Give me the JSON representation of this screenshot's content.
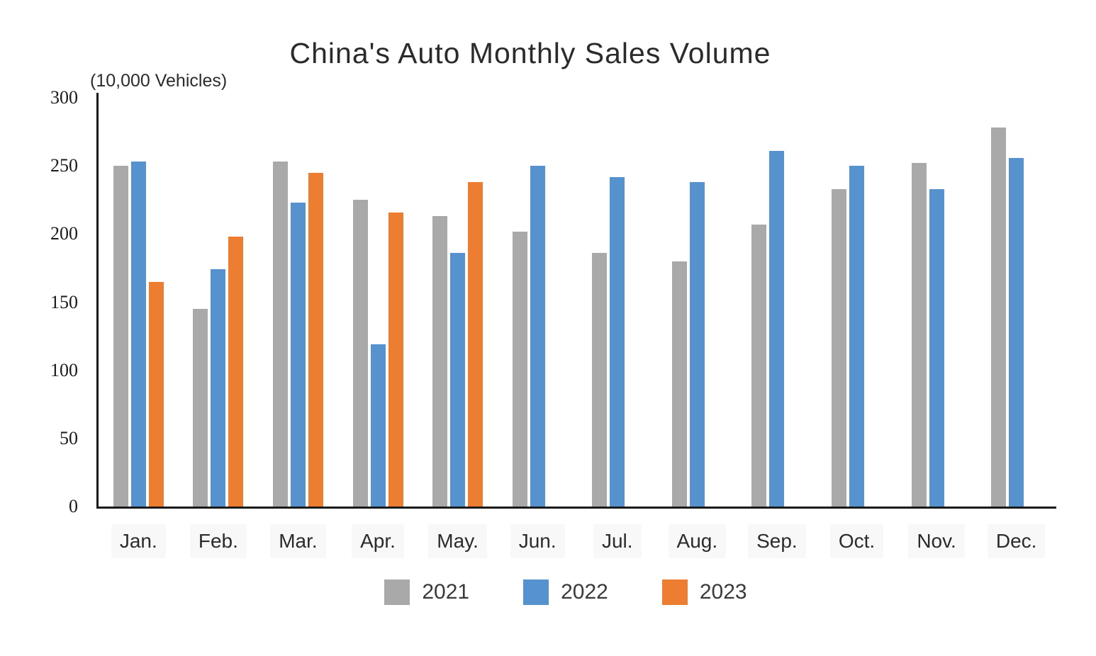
{
  "title": "China's Auto Monthly Sales Volume",
  "unit_label": "(10,000 Vehicles)",
  "colors": {
    "background": "#ffffff",
    "axis": "#1a1a1a",
    "text": "#2d2a2a",
    "series_2021": "#a9a9a9",
    "series_2022": "#5592ce",
    "series_2023": "#ed7d31"
  },
  "chart_data": {
    "type": "bar",
    "title": "China's Auto Monthly Sales Volume",
    "ylabel": "(10,000 Vehicles)",
    "xlabel": "",
    "categories": [
      "Jan.",
      "Feb.",
      "Mar.",
      "Apr.",
      "May.",
      "Jun.",
      "Jul.",
      "Aug.",
      "Sep.",
      "Oct.",
      "Nov.",
      "Dec."
    ],
    "series": [
      {
        "name": "2021",
        "color": "#a9a9a9",
        "values": [
          250,
          145,
          253,
          225,
          213,
          202,
          186,
          180,
          207,
          233,
          252,
          278
        ]
      },
      {
        "name": "2022",
        "color": "#5592ce",
        "values": [
          253,
          174,
          223,
          119,
          186,
          250,
          242,
          238,
          261,
          250,
          233,
          256
        ]
      },
      {
        "name": "2023",
        "color": "#ed7d31",
        "values": [
          165,
          198,
          245,
          216,
          238,
          null,
          null,
          null,
          null,
          null,
          null,
          null
        ]
      }
    ],
    "ylim": [
      0,
      300
    ],
    "yticks": [
      0,
      50,
      100,
      150,
      200,
      250,
      300
    ],
    "grid": false,
    "legend_position": "bottom"
  }
}
